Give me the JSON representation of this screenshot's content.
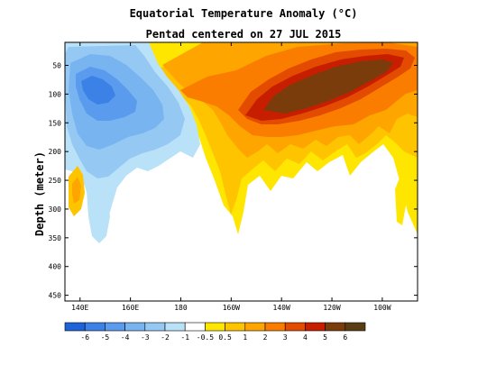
{
  "chart_data": {
    "type": "heatmap",
    "title": "Equatorial Temperature Anomaly (°C)",
    "subtitle": "Pentad centered on 27 JUL 2015",
    "xlabel": "",
    "ylabel": "Depth (meter)",
    "x_ticks": [
      "140E",
      "160E",
      "180",
      "160W",
      "140W",
      "120W",
      "100W"
    ],
    "x_tick_lon": [
      140,
      160,
      180,
      200,
      220,
      240,
      260
    ],
    "xlim": [
      134,
      274
    ],
    "y_ticks": [
      50,
      100,
      150,
      200,
      250,
      300,
      350,
      400,
      450
    ],
    "ylim": [
      460,
      10
    ],
    "y_reversed": true,
    "colorbar": {
      "labels": [
        "-6",
        "-5",
        "-4",
        "-3",
        "-2",
        "-1",
        "-0.5",
        "0.5",
        "1",
        "2",
        "3",
        "4",
        "5",
        "6"
      ],
      "colors": [
        "#1e64d8",
        "#3c82e6",
        "#5a9bee",
        "#78b4f0",
        "#96c8f4",
        "#b9e2f8",
        "#ffffff",
        "#ffe600",
        "#ffc400",
        "#ffa500",
        "#fa7d00",
        "#e34b00",
        "#c81e00",
        "#7a3c0a",
        "#5a3c14"
      ]
    },
    "regions": [
      {
        "name": "cold-anomaly-west",
        "value": -1,
        "description": "cold lobe 136E-185E, 10-350 m"
      },
      {
        "name": "cold-anomaly-core",
        "value": -3,
        "description": "140E-165E, 60-160 m"
      },
      {
        "name": "warm-anomaly-east",
        "value": 2,
        "description": "170E-274E, surface to ~320 m"
      },
      {
        "name": "warm-anomaly-core",
        "value": 6,
        "description": "peak >6 near 125W-110W, 40-110 m"
      },
      {
        "name": "warm-anomaly-deep-west",
        "value": 1,
        "description": "isolated patch near 136E, 230-280 m"
      }
    ]
  }
}
